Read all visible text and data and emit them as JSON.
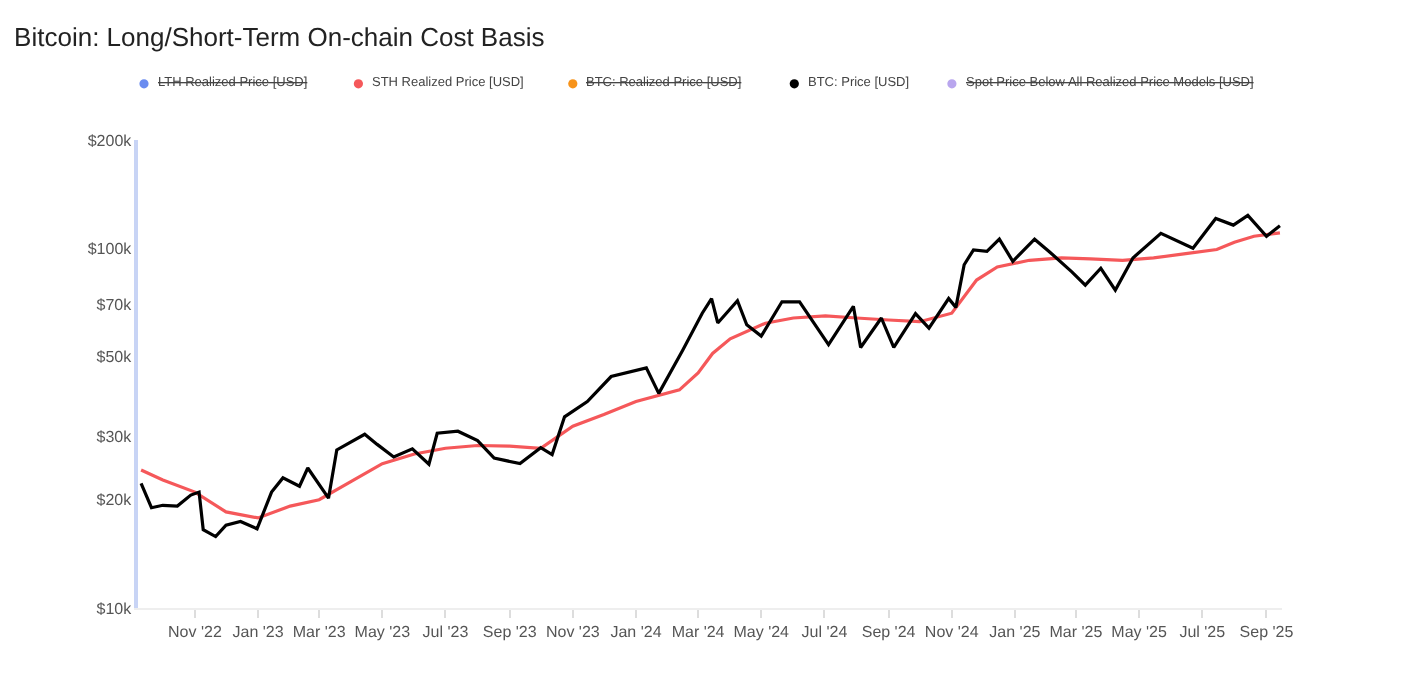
{
  "chart_data": {
    "type": "line",
    "title": "Bitcoin: Long/Short-Term On-chain Cost Basis",
    "log": "y",
    "grid": false,
    "legend": "top left",
    "marker": "none",
    "line_style": "solid",
    "ylim": [
      10000,
      200000
    ],
    "yticks": [
      {
        "value": 10000,
        "label": "$10k"
      },
      {
        "value": 20000,
        "label": "$20k"
      },
      {
        "value": 30000,
        "label": "$30k"
      },
      {
        "value": 50000,
        "label": "$50k"
      },
      {
        "value": 70000,
        "label": "$70k"
      },
      {
        "value": 100000,
        "label": "$100k"
      },
      {
        "value": 200000,
        "label": "$200k"
      }
    ],
    "xlim": [
      "2022-09-07",
      "2025-09-16"
    ],
    "xticks": [
      {
        "value": "2022-11-01",
        "label": "Nov '22"
      },
      {
        "value": "2023-01-01",
        "label": "Jan '23"
      },
      {
        "value": "2023-03-01",
        "label": "Mar '23"
      },
      {
        "value": "2023-05-01",
        "label": "May '23"
      },
      {
        "value": "2023-07-01",
        "label": "Jul '23"
      },
      {
        "value": "2023-09-01",
        "label": "Sep '23"
      },
      {
        "value": "2023-11-01",
        "label": "Nov '23"
      },
      {
        "value": "2024-01-01",
        "label": "Jan '24"
      },
      {
        "value": "2024-03-01",
        "label": "Mar '24"
      },
      {
        "value": "2024-05-01",
        "label": "May '24"
      },
      {
        "value": "2024-07-01",
        "label": "Jul '24"
      },
      {
        "value": "2024-09-01",
        "label": "Sep '24"
      },
      {
        "value": "2024-11-01",
        "label": "Nov '24"
      },
      {
        "value": "2025-01-01",
        "label": "Jan '25"
      },
      {
        "value": "2025-03-01",
        "label": "Mar '25"
      },
      {
        "value": "2025-05-01",
        "label": "May '25"
      },
      {
        "value": "2025-07-01",
        "label": "Jul '25"
      },
      {
        "value": "2025-09-01",
        "label": "Sep '25"
      }
    ],
    "series": [
      {
        "name": "LTH Realized Price [USD]",
        "color": "#6a8cf0"
      },
      {
        "name": "STH Realized Price [USD]",
        "color": "#f5585a",
        "x": [
          "2022-09-10",
          "2022-10-01",
          "2022-11-01",
          "2022-12-01",
          "2023-01-01",
          "2023-02-01",
          "2023-03-01",
          "2023-04-01",
          "2023-05-01",
          "2023-06-01",
          "2023-07-01",
          "2023-08-01",
          "2023-09-01",
          "2023-10-01",
          "2023-11-01",
          "2023-12-01",
          "2024-01-01",
          "2024-02-12",
          "2024-03-01",
          "2024-03-15",
          "2024-04-01",
          "2024-05-05",
          "2024-06-01",
          "2024-07-02",
          "2024-08-01",
          "2024-09-01",
          "2024-10-01",
          "2024-11-01",
          "2024-11-25",
          "2024-12-15",
          "2025-01-15",
          "2025-02-15",
          "2025-03-15",
          "2025-04-15",
          "2025-05-15",
          "2025-06-15",
          "2025-07-15",
          "2025-08-01",
          "2025-08-20",
          "2025-09-14"
        ],
        "values": [
          24200,
          22700,
          21000,
          18500,
          17800,
          19200,
          20000,
          22500,
          25200,
          26800,
          27800,
          28300,
          28200,
          27800,
          32000,
          34500,
          37500,
          40400,
          45000,
          51000,
          56000,
          61900,
          64000,
          64900,
          64000,
          63200,
          62500,
          66000,
          81600,
          88700,
          92600,
          94000,
          93500,
          92600,
          94000,
          96600,
          99200,
          104000,
          108000,
          110400
        ]
      },
      {
        "name": "BTC: Realized Price [USD]",
        "color": "#f7931a"
      },
      {
        "name": "BTC: Price [USD]",
        "color": "#000000",
        "x": [
          "2022-09-10",
          "2022-09-20",
          "2022-10-01",
          "2022-10-15",
          "2022-10-28",
          "2022-11-05",
          "2022-11-09",
          "2022-11-21",
          "2022-12-01",
          "2022-12-15",
          "2022-12-31",
          "2023-01-14",
          "2023-01-25",
          "2023-02-10",
          "2023-02-18",
          "2023-03-10",
          "2023-03-18",
          "2023-04-14",
          "2023-04-26",
          "2023-05-12",
          "2023-05-30",
          "2023-06-15",
          "2023-06-23",
          "2023-07-13",
          "2023-08-01",
          "2023-08-17",
          "2023-09-11",
          "2023-10-01",
          "2023-10-12",
          "2023-10-24",
          "2023-11-15",
          "2023-12-08",
          "2024-01-11",
          "2024-01-23",
          "2024-02-15",
          "2024-03-05",
          "2024-03-14",
          "2024-03-20",
          "2024-04-08",
          "2024-04-17",
          "2024-05-01",
          "2024-05-21",
          "2024-06-07",
          "2024-07-05",
          "2024-07-29",
          "2024-08-05",
          "2024-08-25",
          "2024-09-06",
          "2024-09-27",
          "2024-10-10",
          "2024-10-29",
          "2024-11-05",
          "2024-11-13",
          "2024-11-22",
          "2024-12-05",
          "2024-12-17",
          "2024-12-30",
          "2025-01-20",
          "2025-02-03",
          "2025-02-25",
          "2025-03-10",
          "2025-03-25",
          "2025-04-08",
          "2025-04-25",
          "2025-05-22",
          "2025-06-22",
          "2025-07-14",
          "2025-07-31",
          "2025-08-14",
          "2025-09-01",
          "2025-09-14"
        ],
        "values": [
          22200,
          19000,
          19300,
          19200,
          20600,
          21000,
          16500,
          15800,
          17000,
          17400,
          16600,
          21000,
          23000,
          21800,
          24500,
          20200,
          27500,
          30400,
          28500,
          26300,
          27700,
          25100,
          30600,
          31000,
          29200,
          26100,
          25200,
          27900,
          26700,
          34000,
          37500,
          44000,
          46500,
          39500,
          52000,
          66000,
          72500,
          62000,
          71500,
          61300,
          57000,
          71000,
          71000,
          54000,
          69000,
          53000,
          64000,
          53000,
          65800,
          60000,
          72500,
          68500,
          90000,
          99000,
          98000,
          106000,
          92000,
          106000,
          98000,
          86000,
          79000,
          88000,
          76500,
          94000,
          110000,
          100000,
          121000,
          116000,
          123500,
          108000,
          115500
        ]
      },
      {
        "name": "Spot Price Below All Realized Price Models [USD]",
        "color": "#b9a6ee"
      }
    ]
  }
}
